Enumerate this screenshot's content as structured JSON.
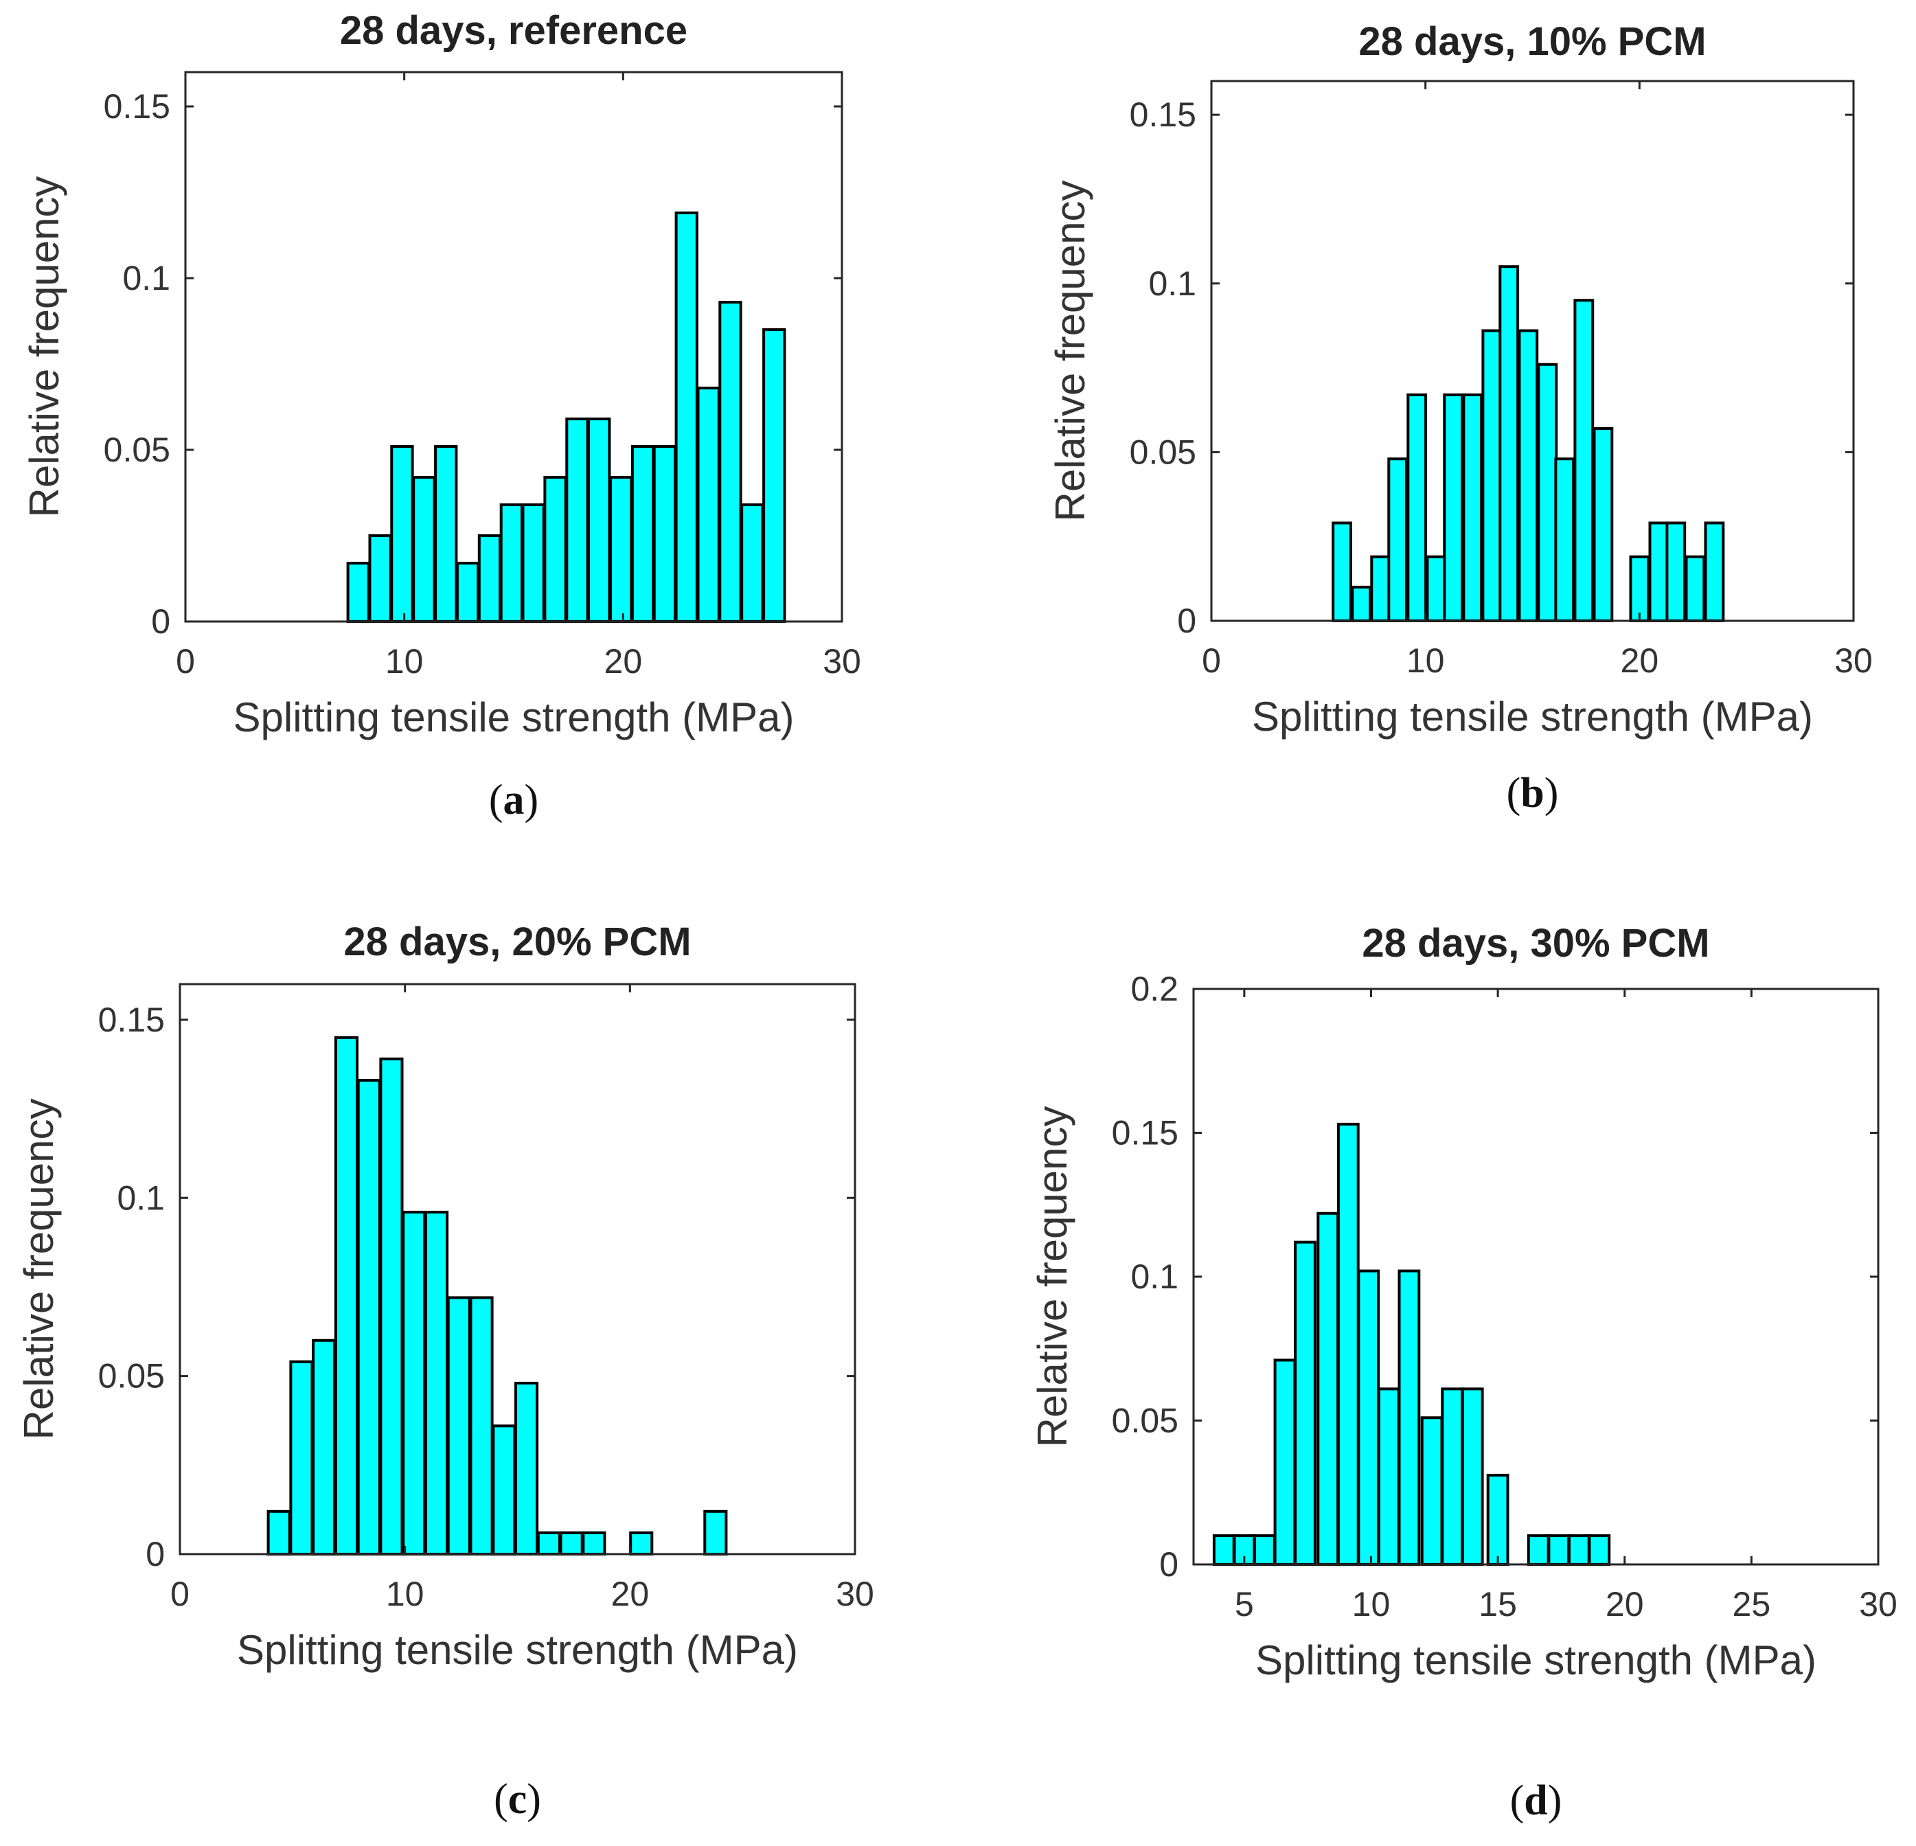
{
  "chart_data": [
    {
      "type": "bar",
      "panel": "(a)",
      "caption": {
        "open": "(",
        "letter": "a",
        "close": ")"
      },
      "title": "28 days, reference",
      "xlabel": "Splitting tensile strength (MPa)",
      "ylabel": "Relative frequency",
      "xlim": [
        0,
        30
      ],
      "ylim": [
        0,
        0.16
      ],
      "xticks": [
        0,
        10,
        20,
        30
      ],
      "xtick_labels": [
        "0",
        "10",
        "20",
        "30"
      ],
      "yticks": [
        0,
        0.05,
        0.1,
        0.15
      ],
      "ytick_labels": [
        "0",
        "0.05",
        "0.1",
        "0.15"
      ],
      "bar_color": "#00ffff",
      "edge_color": "#000000",
      "bin_width": 1,
      "bins": [
        {
          "x": 7.9,
          "y": 0.017
        },
        {
          "x": 8.9,
          "y": 0.025
        },
        {
          "x": 9.9,
          "y": 0.051
        },
        {
          "x": 10.9,
          "y": 0.042
        },
        {
          "x": 11.9,
          "y": 0.051
        },
        {
          "x": 12.9,
          "y": 0.017
        },
        {
          "x": 13.9,
          "y": 0.025
        },
        {
          "x": 14.9,
          "y": 0.034
        },
        {
          "x": 15.9,
          "y": 0.034
        },
        {
          "x": 16.9,
          "y": 0.042
        },
        {
          "x": 17.9,
          "y": 0.059
        },
        {
          "x": 18.9,
          "y": 0.059
        },
        {
          "x": 19.9,
          "y": 0.042
        },
        {
          "x": 20.9,
          "y": 0.051
        },
        {
          "x": 21.9,
          "y": 0.051
        },
        {
          "x": 22.9,
          "y": 0.119
        },
        {
          "x": 23.9,
          "y": 0.068
        },
        {
          "x": 24.9,
          "y": 0.093
        },
        {
          "x": 25.9,
          "y": 0.034
        },
        {
          "x": 26.9,
          "y": 0.085
        }
      ]
    },
    {
      "type": "bar",
      "panel": "(b)",
      "caption": {
        "open": "(",
        "letter": "b",
        "close": ")"
      },
      "title": "28 days, 10% PCM",
      "xlabel": "Splitting tensile strength (MPa)",
      "ylabel": "Relative frequency",
      "xlim": [
        0,
        30
      ],
      "ylim": [
        0,
        0.16
      ],
      "xticks": [
        0,
        10,
        20,
        30
      ],
      "xtick_labels": [
        "0",
        "10",
        "20",
        "30"
      ],
      "yticks": [
        0,
        0.05,
        0.1,
        0.15
      ],
      "ytick_labels": [
        "0",
        "0.05",
        "0.1",
        "0.15"
      ],
      "bar_color": "#00ffff",
      "edge_color": "#000000",
      "bin_width": 0.87,
      "bins": [
        {
          "x": 6.1,
          "y": 0.029
        },
        {
          "x": 7.0,
          "y": 0.01
        },
        {
          "x": 7.9,
          "y": 0.019
        },
        {
          "x": 8.7,
          "y": 0.048
        },
        {
          "x": 9.6,
          "y": 0.067
        },
        {
          "x": 10.5,
          "y": 0.019
        },
        {
          "x": 11.3,
          "y": 0.067
        },
        {
          "x": 12.2,
          "y": 0.067
        },
        {
          "x": 13.1,
          "y": 0.086
        },
        {
          "x": 13.9,
          "y": 0.105
        },
        {
          "x": 14.8,
          "y": 0.086
        },
        {
          "x": 15.7,
          "y": 0.076
        },
        {
          "x": 16.5,
          "y": 0.048
        },
        {
          "x": 17.4,
          "y": 0.095
        },
        {
          "x": 18.3,
          "y": 0.057
        },
        {
          "x": 19.1,
          "y": 0.0
        },
        {
          "x": 20.0,
          "y": 0.019
        },
        {
          "x": 20.9,
          "y": 0.029
        },
        {
          "x": 21.7,
          "y": 0.029
        },
        {
          "x": 22.6,
          "y": 0.019
        },
        {
          "x": 23.5,
          "y": 0.029
        }
      ]
    },
    {
      "type": "bar",
      "panel": "(c)",
      "caption": {
        "open": "(",
        "letter": "c",
        "close": ")"
      },
      "title": "28 days, 20% PCM",
      "xlabel": "Splitting tensile strength (MPa)",
      "ylabel": "Relative frequency",
      "xlim": [
        0,
        30
      ],
      "ylim": [
        0,
        0.16
      ],
      "xticks": [
        0,
        10,
        20,
        30
      ],
      "xtick_labels": [
        "0",
        "10",
        "20",
        "30"
      ],
      "yticks": [
        0,
        0.05,
        0.1,
        0.15
      ],
      "ytick_labels": [
        "0",
        "0.05",
        "0.1",
        "0.15"
      ],
      "bar_color": "#00ffff",
      "edge_color": "#000000",
      "bin_width": 1,
      "bins": [
        {
          "x": 4.4,
          "y": 0.012
        },
        {
          "x": 5.4,
          "y": 0.054
        },
        {
          "x": 6.4,
          "y": 0.06
        },
        {
          "x": 7.4,
          "y": 0.145
        },
        {
          "x": 8.4,
          "y": 0.133
        },
        {
          "x": 9.4,
          "y": 0.139
        },
        {
          "x": 10.4,
          "y": 0.096
        },
        {
          "x": 11.4,
          "y": 0.096
        },
        {
          "x": 12.4,
          "y": 0.072
        },
        {
          "x": 13.4,
          "y": 0.072
        },
        {
          "x": 14.4,
          "y": 0.036
        },
        {
          "x": 15.4,
          "y": 0.048
        },
        {
          "x": 16.4,
          "y": 0.006
        },
        {
          "x": 17.4,
          "y": 0.006
        },
        {
          "x": 18.4,
          "y": 0.006
        },
        {
          "x": 20.5,
          "y": 0.006
        },
        {
          "x": 23.8,
          "y": 0.012
        }
      ]
    },
    {
      "type": "bar",
      "panel": "(d)",
      "caption": {
        "open": "(",
        "letter": "d",
        "close": ")"
      },
      "title": "28 days, 30% PCM",
      "xlabel": "Splitting tensile strength (MPa)",
      "ylabel": "Relative frequency",
      "xlim": [
        3,
        30
      ],
      "ylim": [
        0,
        0.2
      ],
      "xticks": [
        5,
        10,
        15,
        20,
        25,
        30
      ],
      "xtick_labels": [
        "5",
        "10",
        "15",
        "20",
        "25",
        "30"
      ],
      "yticks": [
        0,
        0.05,
        0.1,
        0.15,
        0.2
      ],
      "ytick_labels": [
        "0",
        "0.05",
        "0.1",
        "0.15",
        "0.2"
      ],
      "bar_color": "#00ffff",
      "edge_color": "#000000",
      "bin_width": 0.82,
      "bins": [
        {
          "x": 4.2,
          "y": 0.01
        },
        {
          "x": 5.0,
          "y": 0.01
        },
        {
          "x": 5.8,
          "y": 0.01
        },
        {
          "x": 6.6,
          "y": 0.071
        },
        {
          "x": 7.4,
          "y": 0.112
        },
        {
          "x": 8.3,
          "y": 0.122
        },
        {
          "x": 9.1,
          "y": 0.153
        },
        {
          "x": 9.9,
          "y": 0.102
        },
        {
          "x": 10.7,
          "y": 0.061
        },
        {
          "x": 11.5,
          "y": 0.102
        },
        {
          "x": 12.4,
          "y": 0.051
        },
        {
          "x": 13.2,
          "y": 0.061
        },
        {
          "x": 14.0,
          "y": 0.061
        },
        {
          "x": 15.0,
          "y": 0.031
        },
        {
          "x": 16.6,
          "y": 0.01
        },
        {
          "x": 17.4,
          "y": 0.01
        },
        {
          "x": 18.2,
          "y": 0.01
        },
        {
          "x": 19.0,
          "y": 0.01
        }
      ]
    }
  ]
}
